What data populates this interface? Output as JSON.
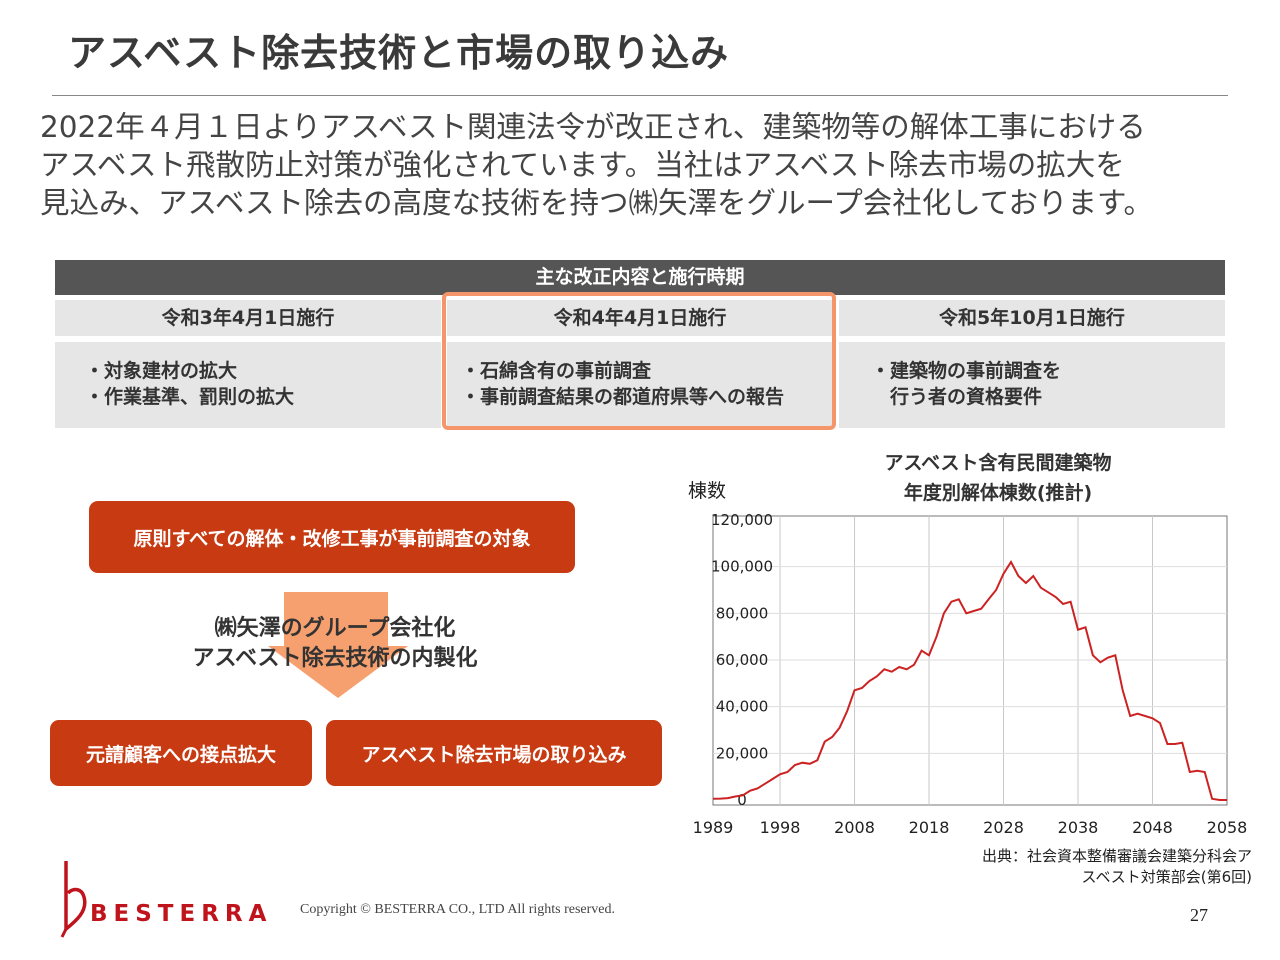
{
  "title": "アスベスト除去技術と市場の取り込み",
  "intro": [
    "2022年４月１日よりアスベスト関連法令が改正され、建築物等の解体工事における",
    "アスベスト飛散防止対策が強化されています。当社はアスベスト除去市場の拡大を",
    "見込み、アスベスト除去の高度な技術を持つ㈱矢澤をグループ会社化しております。"
  ],
  "table": {
    "header": "主な改正内容と施行時期",
    "columns": [
      {
        "heading": "令和3年4月1日施行",
        "items": [
          "・対象建材の拡大",
          "・作業基準、罰則の拡大"
        ]
      },
      {
        "heading": "令和4年4月1日施行",
        "items": [
          "・石綿含有の事前調査",
          "・事前調査結果の都道府県等への報告"
        ]
      },
      {
        "heading": "令和5年10月1日施行",
        "items": [
          "・建築物の事前調査を",
          "　行う者の資格要件"
        ]
      }
    ]
  },
  "flow": {
    "top": "原則すべての解体・改修工事が事前調査の対象",
    "arrow_lines": [
      "㈱矢澤のグループ会社化",
      "アスベスト除去技術の内製化"
    ],
    "left": "元請顧客への接点拡大",
    "right": "アスベスト除去市場の取り込み"
  },
  "chart_data": {
    "type": "line",
    "title": [
      "アスベスト含有民間建築物",
      "年度別解体棟数(推計)"
    ],
    "ylabel": "棟数",
    "xlabel": "",
    "xlim": [
      1989,
      2058
    ],
    "ylim": [
      0,
      120000
    ],
    "x_ticks": [
      1989,
      1998,
      2008,
      2018,
      2028,
      2038,
      2048,
      2058
    ],
    "y_ticks": [
      0,
      20000,
      40000,
      60000,
      80000,
      100000,
      120000
    ],
    "y_tick_labels": [
      "0",
      "20,000",
      "40,000",
      "60,000",
      "80,000",
      "100,000",
      "120,000"
    ],
    "grid": true,
    "line_color": "#cc2222",
    "series": [
      {
        "x": [
          1989,
          1990,
          1991,
          1992,
          1993,
          1994,
          1995,
          1996,
          1997,
          1998,
          1999,
          2000,
          2001,
          2002,
          2003,
          2004,
          2005,
          2006,
          2007,
          2008,
          2009,
          2010,
          2011,
          2012,
          2013,
          2014,
          2015,
          2016,
          2017,
          2018,
          2019,
          2020,
          2021,
          2022,
          2023,
          2024,
          2025,
          2026,
          2027,
          2028,
          2029,
          2030,
          2031,
          2032,
          2033,
          2034,
          2035,
          2036,
          2037,
          2038,
          2039,
          2040,
          2041,
          2042,
          2043,
          2044,
          2045,
          2046,
          2047,
          2048,
          2049,
          2050,
          2051,
          2052,
          2053,
          2054,
          2055,
          2056,
          2057,
          2058
        ],
        "values": [
          500,
          600,
          800,
          1500,
          2000,
          4000,
          5000,
          7000,
          9000,
          11000,
          12000,
          15000,
          16000,
          15500,
          17000,
          25000,
          27000,
          31000,
          38000,
          47000,
          48000,
          51000,
          53000,
          56000,
          55000,
          57000,
          56000,
          58000,
          64000,
          62000,
          70000,
          80000,
          85000,
          86000,
          80000,
          81000,
          82000,
          86000,
          90000,
          97000,
          102000,
          96000,
          93000,
          96000,
          91000,
          89000,
          87000,
          84000,
          85000,
          73000,
          74000,
          62000,
          59000,
          61000,
          62000,
          47000,
          36000,
          37000,
          36000,
          35000,
          33000,
          24000,
          24000,
          24500,
          12000,
          12500,
          12000,
          500,
          0,
          0
        ]
      }
    ]
  },
  "source": [
    "出典：社会資本整備審議会建築分科会ア",
    "スベスト対策部会(第6回)"
  ],
  "logo_text": "BESTERRA",
  "copyright": "Copyright © BESTERRA CO., LTD All rights reserved.",
  "page_number": "27",
  "colors": {
    "accent_red": "#c83a12",
    "highlight_orange": "#f4956a",
    "arrow_orange": "#f6a06f",
    "header_gray": "#555555",
    "cell_gray": "#e6e6e6"
  }
}
